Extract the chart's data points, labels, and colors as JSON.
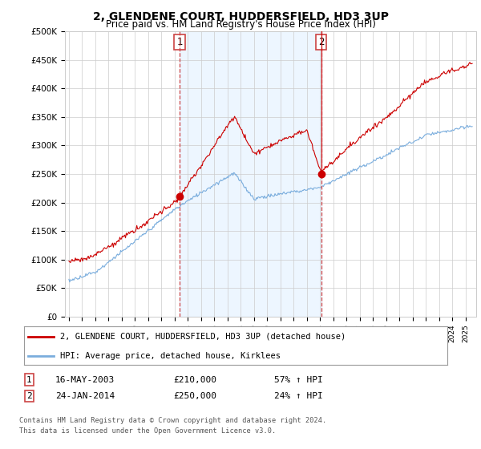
{
  "title": "2, GLENDENE COURT, HUDDERSFIELD, HD3 3UP",
  "subtitle": "Price paid vs. HM Land Registry's House Price Index (HPI)",
  "ylabel_ticks": [
    "£0",
    "£50K",
    "£100K",
    "£150K",
    "£200K",
    "£250K",
    "£300K",
    "£350K",
    "£400K",
    "£450K",
    "£500K"
  ],
  "ytick_values": [
    0,
    50000,
    100000,
    150000,
    200000,
    250000,
    300000,
    350000,
    400000,
    450000,
    500000
  ],
  "ylim": [
    0,
    500000
  ],
  "x_start_year": 1995,
  "x_end_year": 2025,
  "t1_year": 2003.375,
  "t1_price": 210000,
  "t2_year": 2014.07,
  "t2_price": 250000,
  "legend_line1": "2, GLENDENE COURT, HUDDERSFIELD, HD3 3UP (detached house)",
  "legend_line2": "HPI: Average price, detached house, Kirklees",
  "table_row1": [
    "1",
    "16-MAY-2003",
    "£210,000",
    "57% ↑ HPI"
  ],
  "table_row2": [
    "2",
    "24-JAN-2014",
    "£250,000",
    "24% ↑ HPI"
  ],
  "footer1": "Contains HM Land Registry data © Crown copyright and database right 2024.",
  "footer2": "This data is licensed under the Open Government Licence v3.0.",
  "color_red": "#cc0000",
  "color_blue": "#7aaddd",
  "color_grid": "#cccccc",
  "color_bg": "#ffffff",
  "color_shade": "#ddeeff",
  "dashed_red": "#cc4444"
}
